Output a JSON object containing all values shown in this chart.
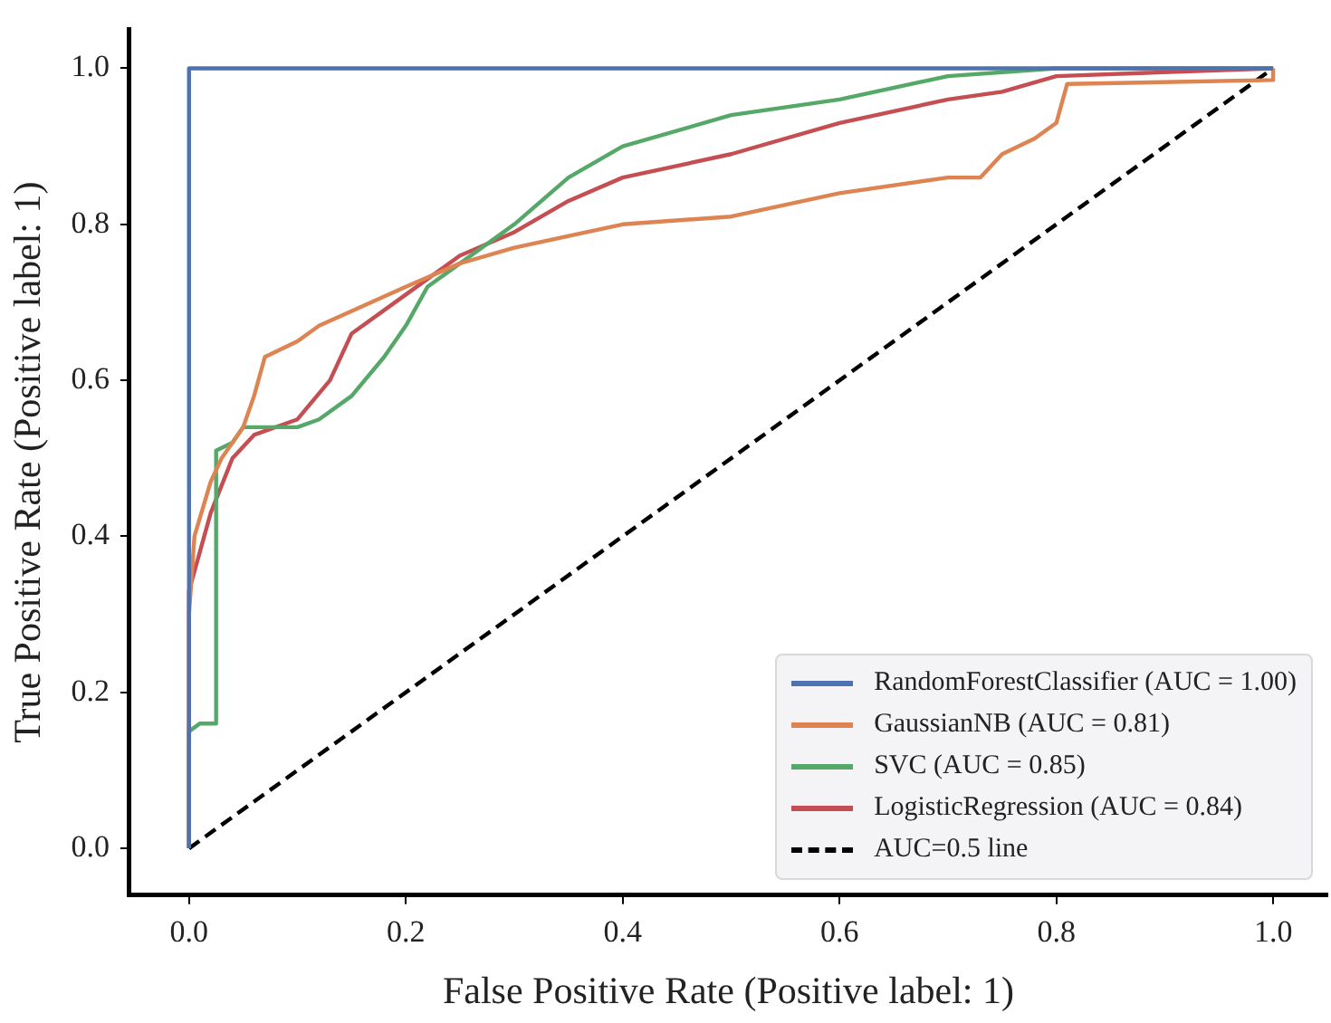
{
  "chart_data": {
    "type": "line",
    "xlabel": "False Positive Rate (Positive label: 1)",
    "ylabel": "True Positive Rate (Positive label: 1)",
    "xlim": [
      -0.055,
      1.05
    ],
    "ylim": [
      -0.06,
      1.05
    ],
    "xticks": [
      {
        "value": 0,
        "label": "0.0"
      },
      {
        "value": 0.2,
        "label": "0.2"
      },
      {
        "value": 0.4,
        "label": "0.4"
      },
      {
        "value": 0.6,
        "label": "0.6"
      },
      {
        "value": 0.8,
        "label": "0.8"
      },
      {
        "value": 1,
        "label": "1.0"
      }
    ],
    "yticks": [
      {
        "value": 0,
        "label": "0.0"
      },
      {
        "value": 0.2,
        "label": "0.2"
      },
      {
        "value": 0.4,
        "label": "0.4"
      },
      {
        "value": 0.6,
        "label": "0.6"
      },
      {
        "value": 0.8,
        "label": "0.8"
      },
      {
        "value": 1,
        "label": "1.0"
      }
    ],
    "grid": false,
    "legend": "bottom right",
    "marker": "none",
    "series": [
      {
        "name": "RandomForestClassifier (AUC = 1.00)",
        "color": "#4c72b0",
        "x": [
          0,
          0,
          1
        ],
        "values": [
          0,
          1,
          1
        ]
      },
      {
        "name": "GaussianNB (AUC = 0.81)",
        "color": "#dd8452",
        "x": [
          0,
          0,
          0.005,
          0.02,
          0.03,
          0.05,
          0.06,
          0.07,
          0.1,
          0.12,
          0.2,
          0.25,
          0.3,
          0.4,
          0.5,
          0.6,
          0.7,
          0.73,
          0.75,
          0.78,
          0.8,
          0.81,
          1,
          1
        ],
        "values": [
          0,
          0.3,
          0.4,
          0.47,
          0.5,
          0.54,
          0.58,
          0.63,
          0.65,
          0.67,
          0.72,
          0.75,
          0.77,
          0.8,
          0.81,
          0.84,
          0.86,
          0.86,
          0.89,
          0.91,
          0.93,
          0.98,
          0.985,
          1
        ]
      },
      {
        "name": "SVC (AUC = 0.85)",
        "color": "#55a868",
        "x": [
          0,
          0,
          0.01,
          0.025,
          0.025,
          0.04,
          0.05,
          0.1,
          0.12,
          0.15,
          0.18,
          0.2,
          0.22,
          0.25,
          0.3,
          0.35,
          0.4,
          0.5,
          0.6,
          0.7,
          0.8,
          1
        ],
        "values": [
          0,
          0.15,
          0.16,
          0.16,
          0.51,
          0.52,
          0.54,
          0.54,
          0.55,
          0.58,
          0.63,
          0.67,
          0.72,
          0.75,
          0.8,
          0.86,
          0.9,
          0.94,
          0.96,
          0.99,
          1,
          1
        ]
      },
      {
        "name": "LogisticRegression (AUC = 0.84)",
        "color": "#c44e52",
        "x": [
          0,
          0,
          0.01,
          0.02,
          0.04,
          0.06,
          0.1,
          0.13,
          0.15,
          0.2,
          0.25,
          0.3,
          0.35,
          0.4,
          0.5,
          0.6,
          0.7,
          0.75,
          0.8,
          1
        ],
        "values": [
          0,
          0.33,
          0.38,
          0.43,
          0.5,
          0.53,
          0.55,
          0.6,
          0.66,
          0.71,
          0.76,
          0.79,
          0.83,
          0.86,
          0.89,
          0.93,
          0.96,
          0.97,
          0.99,
          1
        ]
      },
      {
        "name": "AUC=0.5 line",
        "color": "#000000",
        "line_style": "dashed",
        "x": [
          0,
          1
        ],
        "values": [
          0,
          1
        ]
      }
    ]
  }
}
